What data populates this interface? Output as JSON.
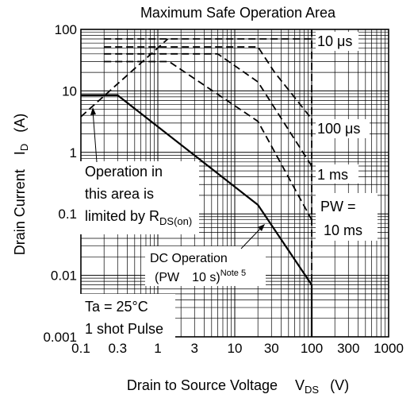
{
  "chart_data": {
    "type": "line",
    "title": "Maximum Safe Operation Area",
    "xlabel": {
      "main": "Drain to Source Voltage",
      "symbol": "V",
      "sub": "DS",
      "unit": "(V)"
    },
    "ylabel": {
      "main": "Drain Current",
      "symbol": "I",
      "sub": "D",
      "unit": "(A)"
    },
    "x_scale": "log",
    "y_scale": "log",
    "xlim": [
      0.1,
      1000
    ],
    "ylim": [
      0.001,
      100
    ],
    "grid": true,
    "x_ticks": [
      "0.1",
      "0.3",
      "1",
      "3",
      "10",
      "30",
      "100",
      "300",
      "1000"
    ],
    "x_tick_values": [
      0.1,
      0.3,
      1,
      3,
      10,
      30,
      100,
      300,
      1000
    ],
    "y_ticks": [
      "100",
      "10",
      "1",
      "0.1",
      "0.01",
      "0.001"
    ],
    "y_tick_values": [
      100,
      10,
      1,
      0.1,
      0.01,
      0.001
    ],
    "series": [
      {
        "name": "",
        "style": "dashed",
        "points": [
          [
            0.1,
            3.8
          ],
          [
            1.35,
            70
          ]
        ]
      },
      {
        "name": "10 μs",
        "style": "dashed",
        "points": [
          [
            0.2,
            70
          ],
          [
            100,
            70
          ],
          [
            100,
            50
          ]
        ]
      },
      {
        "name": "100 μs",
        "style": "dashed",
        "points": [
          [
            0.2,
            52
          ],
          [
            20,
            52
          ],
          [
            33,
            20
          ],
          [
            100,
            3.5
          ]
        ]
      },
      {
        "name": "1 ms",
        "style": "dashed",
        "points": [
          [
            0.2,
            40
          ],
          [
            6,
            40
          ],
          [
            20,
            14
          ],
          [
            100,
            0.6
          ]
        ]
      },
      {
        "name": "10 ms",
        "style": "dashed",
        "points": [
          [
            0.2,
            30
          ],
          [
            1.4,
            30
          ],
          [
            20,
            3.2
          ],
          [
            100,
            0.08
          ]
        ]
      },
      {
        "name": "DC Operation",
        "style": "solid",
        "points": [
          [
            0.1,
            8.5
          ],
          [
            0.3,
            8.5
          ],
          [
            20,
            0.14
          ],
          [
            100,
            0.007
          ],
          [
            100,
            0.001
          ]
        ]
      }
    ],
    "vertical_line": {
      "x": 100,
      "style": "dashed"
    },
    "annotations": {
      "label_10us": "10 μs",
      "label_100us": "100 μs",
      "label_1ms": "1 ms",
      "pw_line1": "PW =",
      "pw_line2": "10 ms",
      "rds_line1": "Operation in",
      "rds_line2": "this area is",
      "rds_line3_main": "limited by R",
      "rds_line3_sub": "DS(on)",
      "dc_line1": "DC Operation",
      "dc_line2": "(PW",
      "dc_line2_b": "10 s)",
      "dc_note": "Note 5",
      "cond_line1": "Ta = 25°C",
      "cond_line2": "1 shot Pulse"
    }
  }
}
